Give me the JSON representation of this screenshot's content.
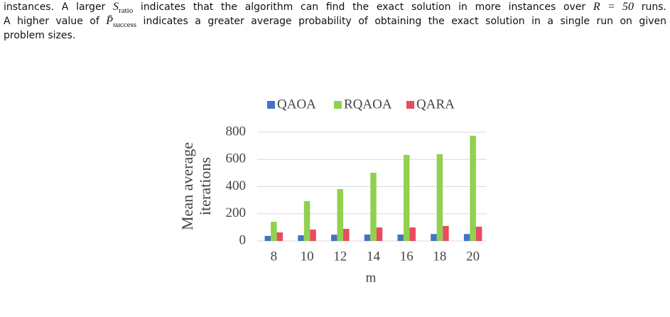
{
  "paragraph": [
    [
      {
        "text": "instances. A larger "
      },
      {
        "math": "S",
        "sub": "ratio"
      },
      {
        "text": " indicates that the algorithm can find the exact solution in more instances over "
      },
      {
        "math": "R = 50"
      },
      {
        "text": " runs."
      }
    ],
    [
      {
        "text": "A higher value of "
      },
      {
        "math": "P̄",
        "sub": "success"
      },
      {
        "text": " indicates a greater average probability of obtaining the exact solution in a single run on given"
      }
    ],
    [
      {
        "text": "problem sizes."
      }
    ]
  ],
  "chart_data": {
    "type": "bar",
    "categories": [
      "8",
      "10",
      "12",
      "14",
      "16",
      "18",
      "20"
    ],
    "series": [
      {
        "name": "QAOA",
        "color": "#4472c4",
        "values": [
          37,
          42,
          46,
          47,
          47,
          51,
          51
        ]
      },
      {
        "name": "RQAOA",
        "color": "#92d050",
        "values": [
          141,
          293,
          382,
          502,
          633,
          638,
          774
        ]
      },
      {
        "name": "QARA",
        "color": "#e84c5d",
        "values": [
          63,
          84,
          89,
          99,
          99,
          110,
          105
        ]
      }
    ],
    "ylim": [
      0,
      800
    ],
    "yticks": [
      0,
      200,
      400,
      600,
      800
    ],
    "grid": true,
    "ylabel": [
      "Mean average",
      "iterations"
    ],
    "xlabel": "m",
    "legend": "top"
  }
}
